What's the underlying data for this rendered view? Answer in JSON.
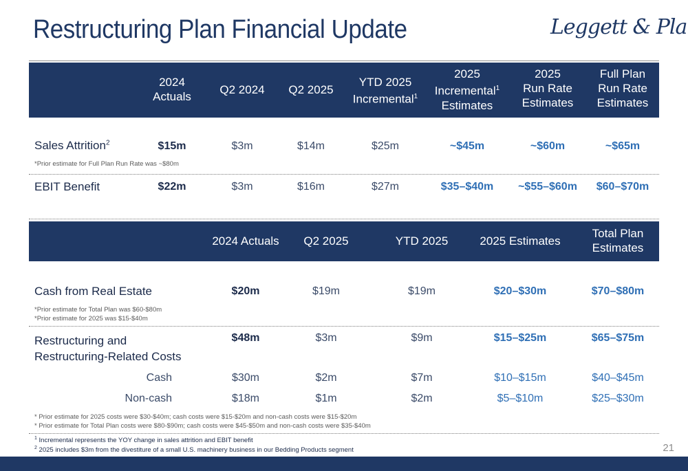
{
  "title": "Restructuring Plan Financial Update",
  "logo_text": "Leggett & Platt",
  "logo_mark": "®",
  "table1": {
    "headers": [
      {
        "l1": "2024",
        "l2": "Actuals",
        "l3": ""
      },
      {
        "l1": "Q2 2024",
        "l2": "",
        "l3": ""
      },
      {
        "l1": "Q2 2025",
        "l2": "",
        "l3": ""
      },
      {
        "l1": "YTD 2025",
        "l2": "Incremental",
        "sup": "1"
      },
      {
        "l1": "2025",
        "l2": "Incremental",
        "sup": "1",
        "l3": "Estimates"
      },
      {
        "l1": "2025",
        "l2": "Run Rate",
        "l3": "Estimates"
      },
      {
        "l1": "Full Plan",
        "l2": "Run Rate",
        "l3": "Estimates"
      }
    ],
    "rows": [
      {
        "label": "Sales Attrition",
        "sup": "2",
        "values": [
          "$15m",
          "$3m",
          "$14m",
          "$25m",
          "~$45m",
          "~$60m",
          "~$65m"
        ],
        "note": "*Prior estimate for Full Plan Run Rate was ~$80m"
      },
      {
        "label": "EBIT Benefit",
        "values": [
          "$22m",
          "$3m",
          "$16m",
          "$27m",
          "$35–$40m",
          "~$55–$60m",
          "$60–$70m"
        ]
      }
    ]
  },
  "table2": {
    "headers": [
      {
        "l1": "2024 Actuals"
      },
      {
        "l1": "Q2 2025"
      },
      {
        "l1": "YTD 2025"
      },
      {
        "l1": "2025 Estimates"
      },
      {
        "l1": "Total Plan",
        "l2": "Estimates"
      }
    ],
    "cash_real_estate": {
      "label": "Cash from Real Estate",
      "values": [
        "$20m",
        "$19m",
        "$19m",
        "$20–$30m",
        "$70–$80m"
      ],
      "note1": "*Prior estimate for Total Plan was $60-$80m",
      "note2": "*Prior estimate for 2025 was $15-$40m"
    },
    "restructuring": {
      "label1": "Restructuring and",
      "label2": "Restructuring-Related Costs",
      "values": [
        "$48m",
        "$3m",
        "$9m",
        "$15–$25m",
        "$65–$75m"
      ]
    },
    "cash": {
      "label": "Cash",
      "values": [
        "$30m",
        "$2m",
        "$7m",
        "$10–$15m",
        "$40–$45m"
      ]
    },
    "noncash": {
      "label": "Non-cash",
      "values": [
        "$18m",
        "$1m",
        "$2m",
        "$5–$10m",
        "$25–$30m"
      ]
    },
    "note1": "* Prior estimate for 2025 costs were $30-$40m; cash costs were $15-$20m and non-cash costs were $15-$20m",
    "note2": "* Prior estimate for Total Plan costs were $80-$90m; cash costs were $45-$50m and non-cash costs were $35-$40m"
  },
  "footnotes": {
    "f1_num": "1",
    "f1": "Incremental represents the YOY change in sales attrition and EBIT benefit",
    "f2_num": "2",
    "f2": "2025 includes $3m from the divestiture of a small U.S. machinery business in our Bedding Products segment"
  },
  "page_number": "21",
  "colors": {
    "navy": "#1f3864",
    "blue_value": "#2f6fb5",
    "text": "#1b2a4a"
  }
}
